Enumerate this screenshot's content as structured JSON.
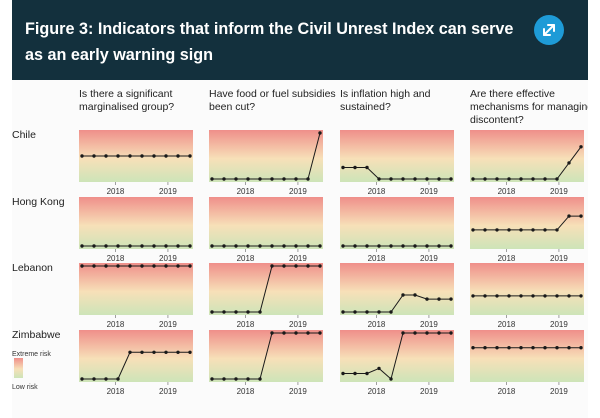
{
  "header": {
    "title": "Figure 3: Indicators that inform the Civil Unrest Index can serve as an early warning sign",
    "expand_icon": "expand-arrows-icon",
    "background": "#13303d",
    "accent": "#1e9bd7"
  },
  "chart_data": {
    "type": "line",
    "layout": "small-multiples",
    "scale": "qualitative risk: 0 = Low risk, 1 = Extreme risk",
    "ylim": [
      0,
      1
    ],
    "gradient_colors": {
      "extreme": "#ef8f8a",
      "mid": "#f7e0b8",
      "low": "#cde4b8"
    },
    "line_color": "#1a1a1a",
    "legend": {
      "extreme": "Extreme risk",
      "low": "Low risk"
    },
    "x_ticks": [
      "2018",
      "2019"
    ],
    "columns": [
      {
        "title": "Is there a significant marginalised group?",
        "lines": [
          "Is there a significant",
          "marginalised group?"
        ]
      },
      {
        "title": "Have food or fuel subsidies been cut?",
        "lines": [
          "Have food or fuel subsidies",
          "been cut?"
        ]
      },
      {
        "title": "Is inflation high and sustained?",
        "lines": [
          "Is inflation high and",
          "sustained?"
        ]
      },
      {
        "title": "Are there effective mechanisms for managing discontent?",
        "lines": [
          "Are there effective",
          "mechanisms for managing",
          "discontent?"
        ]
      }
    ],
    "rows": [
      {
        "country": "Chile",
        "series": [
          [
            0.5,
            0.5,
            0.5,
            0.5,
            0.5,
            0.5,
            0.5,
            0.5,
            0.5,
            0.5
          ],
          [
            0,
            0,
            0,
            0,
            0,
            0,
            0,
            0,
            0,
            1
          ],
          [
            0.25,
            0.25,
            0.25,
            0,
            0,
            0,
            0,
            0,
            0,
            0
          ],
          [
            0,
            0,
            0,
            0,
            0,
            0,
            0,
            0,
            0.35,
            0.7
          ]
        ]
      },
      {
        "country": "Hong Kong",
        "series": [
          [
            0,
            0,
            0,
            0,
            0,
            0,
            0,
            0,
            0,
            0
          ],
          [
            0,
            0,
            0,
            0,
            0,
            0,
            0,
            0,
            0,
            0
          ],
          [
            0,
            0,
            0,
            0,
            0,
            0,
            0,
            0,
            0,
            0
          ],
          [
            0.35,
            0.35,
            0.35,
            0.35,
            0.35,
            0.35,
            0.35,
            0.35,
            0.65,
            0.65
          ]
        ]
      },
      {
        "country": "Lebanon",
        "series": [
          [
            1,
            1,
            1,
            1,
            1,
            1,
            1,
            1,
            1,
            1
          ],
          [
            0,
            0,
            0,
            0,
            0,
            1,
            1,
            1,
            1,
            1
          ],
          [
            0,
            0,
            0,
            0,
            0,
            0.37,
            0.37,
            0.28,
            0.28,
            0.28
          ],
          [
            0.35,
            0.35,
            0.35,
            0.35,
            0.35,
            0.35,
            0.35,
            0.35,
            0.35,
            0.35
          ]
        ]
      },
      {
        "country": "Zimbabwe",
        "series": [
          [
            0,
            0,
            0,
            0,
            0.58,
            0.58,
            0.58,
            0.58,
            0.58,
            0.58
          ],
          [
            0,
            0,
            0,
            0,
            0,
            1,
            1,
            1,
            1,
            1
          ],
          [
            0.12,
            0.12,
            0.12,
            0.23,
            0,
            1,
            1,
            1,
            1,
            1
          ],
          [
            0.68,
            0.68,
            0.68,
            0.68,
            0.68,
            0.68,
            0.68,
            0.68,
            0.68,
            0.68
          ]
        ]
      }
    ]
  }
}
